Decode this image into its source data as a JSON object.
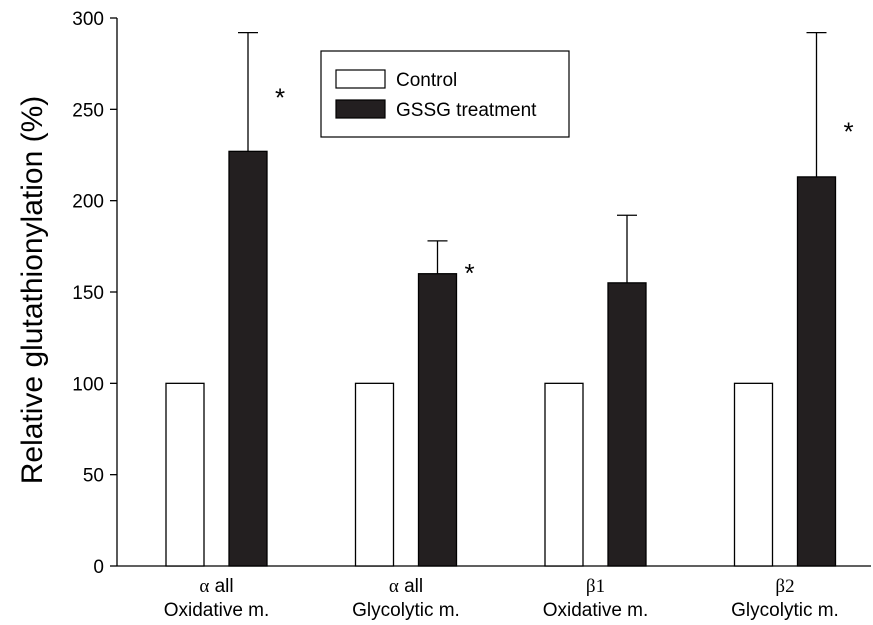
{
  "chart_data": {
    "type": "bar",
    "ylabel": "Relative glutathionylation (%)",
    "xlabel": "",
    "ylim": [
      0,
      300
    ],
    "yticks": [
      0,
      50,
      100,
      150,
      200,
      250,
      300
    ],
    "categories": [
      {
        "line1": "α all",
        "line2": "Oxidative m."
      },
      {
        "line1": "α all",
        "line2": "Glycolytic m."
      },
      {
        "line1": "β1",
        "line2": "Oxidative m."
      },
      {
        "line1": "β2",
        "line2": "Glycolytic m."
      }
    ],
    "series": [
      {
        "name": "Control",
        "values": [
          100,
          100,
          100,
          100
        ],
        "error": [
          0,
          0,
          0,
          0
        ],
        "fill": "#ffffff",
        "significant": [
          false,
          false,
          false,
          false
        ]
      },
      {
        "name": "GSSG treatment",
        "values": [
          227,
          160,
          155,
          213
        ],
        "error": [
          65,
          18,
          37,
          79
        ],
        "fill": "#231f20",
        "significant": [
          true,
          true,
          false,
          true
        ]
      }
    ],
    "significance_marker": "*",
    "legend_position": "top-center",
    "grid": false
  },
  "colors": {
    "axis": "#000000",
    "gssg": "#231f20",
    "control": "#ffffff"
  }
}
